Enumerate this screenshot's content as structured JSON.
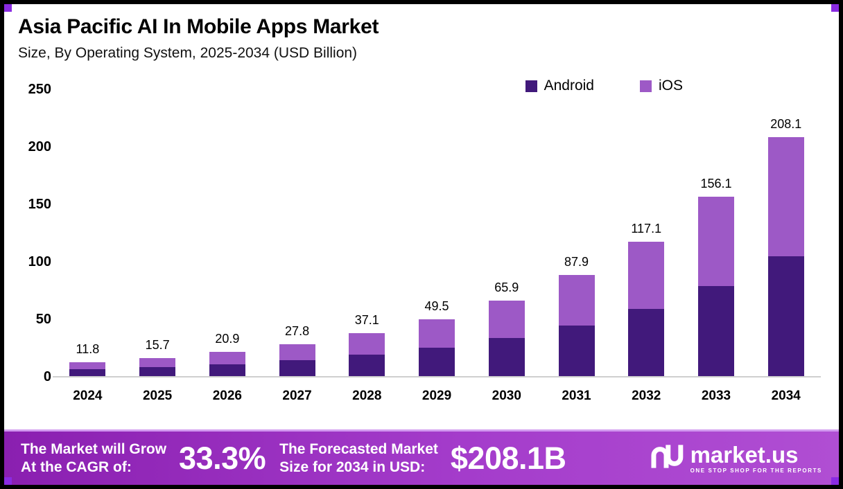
{
  "colors": {
    "android": "#41197b",
    "ios": "#9d59c6",
    "corner_accent": "#8a2be2",
    "banner_gradient_start": "#8a1fb0",
    "banner_gradient_end": "#b04ed3"
  },
  "header": {
    "title": "Asia Pacific AI In Mobile Apps Market",
    "subtitle": "Size, By Operating System, 2025-2034 (USD Billion)"
  },
  "chart_data": {
    "type": "bar",
    "stacked": true,
    "title": "Asia Pacific AI In Mobile Apps Market Size, By Operating System, 2025-2034 (USD Billion)",
    "categories": [
      "2024",
      "2025",
      "2026",
      "2027",
      "2028",
      "2029",
      "2030",
      "2031",
      "2032",
      "2033",
      "2034"
    ],
    "series": [
      {
        "name": "Android",
        "color": "#41197b",
        "values": [
          5.9,
          7.8,
          10.4,
          13.9,
          18.5,
          24.8,
          33.0,
          44.0,
          58.6,
          78.1,
          104.1
        ]
      },
      {
        "name": "iOS",
        "color": "#9d59c6",
        "values": [
          5.9,
          7.9,
          10.5,
          13.9,
          18.6,
          24.7,
          32.9,
          43.9,
          58.5,
          78.0,
          104.0
        ]
      }
    ],
    "totals": [
      11.8,
      15.7,
      20.9,
      27.8,
      37.1,
      49.5,
      65.9,
      87.9,
      117.1,
      156.1,
      208.1
    ],
    "xlabel": "",
    "ylabel": "",
    "ylim": [
      0,
      250
    ],
    "yticks": [
      0,
      50,
      100,
      150,
      200,
      250
    ],
    "grid": false,
    "legend_position": "top-right"
  },
  "banner": {
    "growth_label_line1": "The Market will Grow",
    "growth_label_line2": "At the CAGR of:",
    "cagr_value": "33.3%",
    "forecast_label_line1": "The Forecasted Market",
    "forecast_label_line2": "Size for 2034 in USD:",
    "forecast_value": "$208.1B",
    "brand_name": "market.us",
    "brand_tagline": "ONE STOP SHOP FOR THE REPORTS"
  }
}
